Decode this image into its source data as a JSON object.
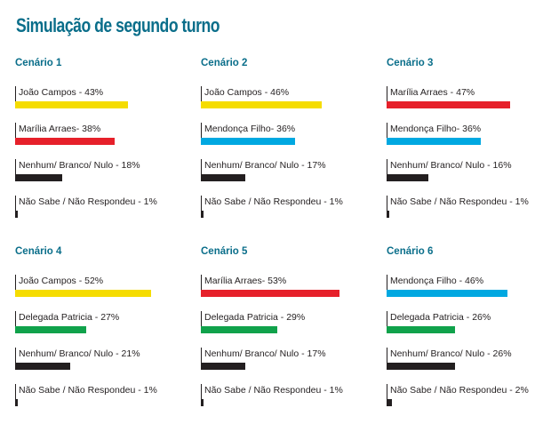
{
  "title": "Simulação de segundo turno",
  "colors": {
    "title": "#0a6e8a",
    "yellow": "#f5dc00",
    "red": "#e6202a",
    "blue": "#00a8e1",
    "green": "#10a24b",
    "black": "#231f20"
  },
  "chart_data": [
    {
      "type": "bar",
      "title": "Cenário 1",
      "categories": [
        "João Campos - 43%",
        "Marília Arraes- 38%",
        "Nenhum/ Branco/ Nulo - 18%",
        "Não Sabe / Não Respondeu - 1%"
      ],
      "values": [
        43,
        38,
        18,
        1
      ],
      "colors": [
        "#f5dc00",
        "#e6202a",
        "#231f20",
        "#231f20"
      ]
    },
    {
      "type": "bar",
      "title": "Cenário 2",
      "categories": [
        "João Campos - 46%",
        "Mendonça Filho- 36%",
        "Nenhum/ Branco/ Nulo - 17%",
        "Não Sabe / Não Respondeu - 1%"
      ],
      "values": [
        46,
        36,
        17,
        1
      ],
      "colors": [
        "#f5dc00",
        "#00a8e1",
        "#231f20",
        "#231f20"
      ]
    },
    {
      "type": "bar",
      "title": "Cenário 3",
      "categories": [
        "Marília Arraes - 47%",
        "Mendonça Filho- 36%",
        "Nenhum/ Branco/ Nulo - 16%",
        "Não Sabe / Não Respondeu - 1%"
      ],
      "values": [
        47,
        36,
        16,
        1
      ],
      "colors": [
        "#e6202a",
        "#00a8e1",
        "#231f20",
        "#231f20"
      ]
    },
    {
      "type": "bar",
      "title": "Cenário 4",
      "categories": [
        "João Campos - 52%",
        "Delegada Patricia - 27%",
        "Nenhum/ Branco/ Nulo - 21%",
        "Não Sabe / Não Respondeu - 1%"
      ],
      "values": [
        52,
        27,
        21,
        1
      ],
      "colors": [
        "#f5dc00",
        "#10a24b",
        "#231f20",
        "#231f20"
      ]
    },
    {
      "type": "bar",
      "title": "Cenário 5",
      "categories": [
        "Marília Arraes- 53%",
        "Delegada Patricia - 29%",
        "Nenhum/ Branco/ Nulo - 17%",
        "Não Sabe / Não Respondeu - 1%"
      ],
      "values": [
        53,
        29,
        17,
        1
      ],
      "colors": [
        "#e6202a",
        "#10a24b",
        "#231f20",
        "#231f20"
      ]
    },
    {
      "type": "bar",
      "title": "Cenário 6",
      "categories": [
        "Mendonça Filho - 46%",
        "Delegada Patricia - 26%",
        "Nenhum/ Branco/ Nulo - 26%",
        "Não Sabe / Não Respondeu - 2%"
      ],
      "values": [
        46,
        26,
        26,
        2
      ],
      "colors": [
        "#00a8e1",
        "#10a24b",
        "#231f20",
        "#231f20"
      ]
    }
  ]
}
